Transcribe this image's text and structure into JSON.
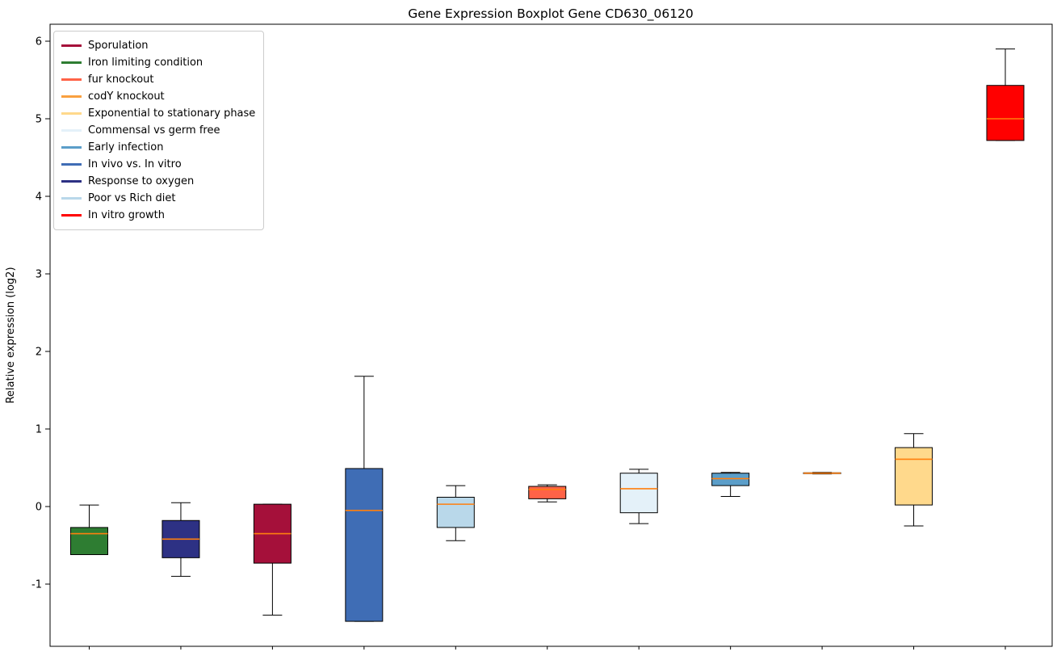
{
  "figure": {
    "title": "Gene Expression Boxplot Gene CD630_06120",
    "ylabel": "Relative expression (log2)"
  },
  "chart_data": {
    "type": "boxplot",
    "title": "Gene Expression Boxplot Gene CD630_06120",
    "xlabel": "",
    "ylabel": "Relative expression (log2)",
    "ylim": [
      -1.8,
      6.22
    ],
    "yticks": [
      6,
      5,
      4,
      3,
      2,
      1,
      0,
      -1
    ],
    "grid": false,
    "legend_position": "upper left",
    "median_color": "#FF7F0E",
    "box_edge_color": "#000000",
    "legend": [
      {
        "label": "Sporulation",
        "color": "#A5103A"
      },
      {
        "label": "Iron limiting condition",
        "color": "#2E7D32"
      },
      {
        "label": "fur knockout",
        "color": "#FF6347"
      },
      {
        "label": "codY knockout",
        "color": "#F9A03F"
      },
      {
        "label": "Exponential to stationary phase",
        "color": "#FFD98C"
      },
      {
        "label": "Commensal vs germ free",
        "color": "#E4F1F9"
      },
      {
        "label": "Early infection",
        "color": "#5B9EC9"
      },
      {
        "label": "In vivo vs. In vitro",
        "color": "#3F6DB5"
      },
      {
        "label": "Response to oxygen",
        "color": "#2D3184"
      },
      {
        "label": "Poor vs Rich diet",
        "color": "#B9D8EA"
      },
      {
        "label": "In vitro growth",
        "color": "#FF0000"
      }
    ],
    "series": [
      {
        "name": "Iron limiting condition",
        "color": "#2E7D32",
        "whislo": -0.62,
        "q1": -0.62,
        "med": -0.35,
        "q3": -0.27,
        "whishi": 0.02
      },
      {
        "name": "Response to oxygen",
        "color": "#2D3184",
        "whislo": -0.9,
        "q1": -0.66,
        "med": -0.42,
        "q3": -0.18,
        "whishi": 0.05
      },
      {
        "name": "Sporulation",
        "color": "#A5103A",
        "whislo": -1.4,
        "q1": -0.73,
        "med": -0.35,
        "q3": 0.03,
        "whishi": 0.03
      },
      {
        "name": "In vivo vs. In vitro",
        "color": "#3F6DB5",
        "whislo": -1.48,
        "q1": -1.48,
        "med": -0.05,
        "q3": 0.49,
        "whishi": 1.68
      },
      {
        "name": "Poor vs Rich diet",
        "color": "#B9D8EA",
        "whislo": -0.44,
        "q1": -0.27,
        "med": 0.03,
        "q3": 0.12,
        "whishi": 0.27
      },
      {
        "name": "fur knockout",
        "color": "#FF6347",
        "whislo": 0.06,
        "q1": 0.1,
        "med": 0.22,
        "q3": 0.26,
        "whishi": 0.28
      },
      {
        "name": "Commensal vs germ free",
        "color": "#E4F1F9",
        "whislo": -0.22,
        "q1": -0.08,
        "med": 0.23,
        "q3": 0.43,
        "whishi": 0.48
      },
      {
        "name": "Early infection",
        "color": "#5B9EC9",
        "whislo": 0.13,
        "q1": 0.27,
        "med": 0.36,
        "q3": 0.43,
        "whishi": 0.44
      },
      {
        "name": "codY knockout",
        "color": "#F9A03F",
        "whislo": 0.42,
        "q1": 0.425,
        "med": 0.43,
        "q3": 0.435,
        "whishi": 0.44
      },
      {
        "name": "Exponential to stationary phase",
        "color": "#FFD98C",
        "whislo": -0.25,
        "q1": 0.02,
        "med": 0.61,
        "q3": 0.76,
        "whishi": 0.94
      },
      {
        "name": "In vitro growth",
        "color": "#FF0000",
        "whislo": 4.72,
        "q1": 4.72,
        "med": 5.0,
        "q3": 5.43,
        "whishi": 5.9
      }
    ]
  }
}
